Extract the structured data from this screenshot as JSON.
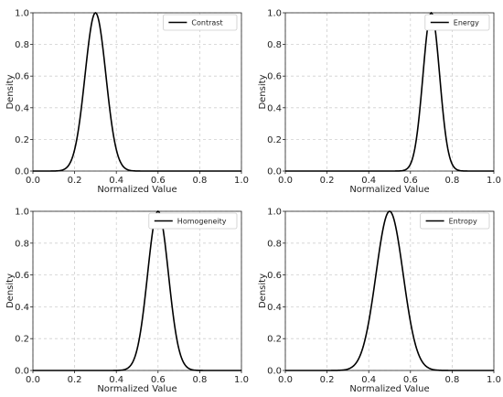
{
  "chart_data": [
    {
      "type": "line",
      "series": [
        {
          "name": "Contrast",
          "mean": 0.3,
          "sd": 0.05
        }
      ],
      "xlabel": "Normalized Value",
      "ylabel": "Density",
      "xlim": [
        0.0,
        1.0
      ],
      "ylim": [
        0.0,
        1.0
      ],
      "xticks": [
        "0.0",
        "0.2",
        "0.4",
        "0.6",
        "0.8",
        "1.0"
      ],
      "yticks": [
        "0.0",
        "0.2",
        "0.4",
        "0.6",
        "0.8",
        "1.0"
      ],
      "grid": true,
      "legend": "top-right"
    },
    {
      "type": "line",
      "series": [
        {
          "name": "Energy",
          "mean": 0.7,
          "sd": 0.04
        }
      ],
      "xlabel": "Normalized Value",
      "ylabel": "Density",
      "xlim": [
        0.0,
        1.0
      ],
      "ylim": [
        0.0,
        1.0
      ],
      "xticks": [
        "0.0",
        "0.2",
        "0.4",
        "0.6",
        "0.8",
        "1.0"
      ],
      "yticks": [
        "0.0",
        "0.2",
        "0.4",
        "0.6",
        "0.8",
        "1.0"
      ],
      "grid": true,
      "legend": "top-right"
    },
    {
      "type": "line",
      "series": [
        {
          "name": "Homogeneity",
          "mean": 0.6,
          "sd": 0.05
        }
      ],
      "xlabel": "Normalized Value",
      "ylabel": "Density",
      "xlim": [
        0.0,
        1.0
      ],
      "ylim": [
        0.0,
        1.0
      ],
      "xticks": [
        "0.0",
        "0.2",
        "0.4",
        "0.6",
        "0.8",
        "1.0"
      ],
      "yticks": [
        "0.0",
        "0.2",
        "0.4",
        "0.6",
        "0.8",
        "1.0"
      ],
      "grid": true,
      "legend": "top-right"
    },
    {
      "type": "line",
      "series": [
        {
          "name": "Entropy",
          "mean": 0.5,
          "sd": 0.065
        }
      ],
      "xlabel": "Normalized Value",
      "ylabel": "Density",
      "xlim": [
        0.0,
        1.0
      ],
      "ylim": [
        0.0,
        1.0
      ],
      "xticks": [
        "0.0",
        "0.2",
        "0.4",
        "0.6",
        "0.8",
        "1.0"
      ],
      "yticks": [
        "0.0",
        "0.2",
        "0.4",
        "0.6",
        "0.8",
        "1.0"
      ],
      "grid": true,
      "legend": "top-right"
    }
  ]
}
